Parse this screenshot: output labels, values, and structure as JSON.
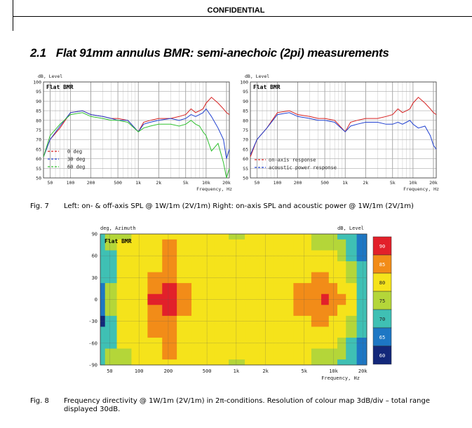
{
  "header": {
    "confidential": "CONFIDENTIAL"
  },
  "section": {
    "number": "2.1",
    "title": "Flat 91mm annulus BMR: semi-anechoic (2pi) measurements"
  },
  "fig7": {
    "label": "Fig. 7",
    "caption": "Left: on- & off-axis SPL @ 1W/1m (2V/1m) Right: on-axis SPL and acoustic power @ 1W/1m (2V/1m)"
  },
  "fig8": {
    "label": "Fig. 8",
    "caption": "Frequency directivity @ 1W/1m (2V/1m) in 2π-conditions. Resolution of colour map 3dB/div – total range displayed 30dB."
  },
  "chart_data": [
    {
      "type": "line",
      "panel_label": "Flat BMR",
      "ylabel": "dB, Level",
      "xlabel": "Frequency,  Hz",
      "xscale": "log",
      "xlim": [
        40,
        22000
      ],
      "ylim": [
        50,
        100
      ],
      "grid": true,
      "legend_position": "bottom-left",
      "x_ticks": [
        "50",
        "100",
        "200",
        "500",
        "1k",
        "2k",
        "5k",
        "10k",
        "20k"
      ],
      "y_ticks": [
        "50",
        "55",
        "60",
        "65",
        "70",
        "75",
        "80",
        "85",
        "90",
        "95",
        "100"
      ],
      "x": [
        40,
        50,
        70,
        100,
        150,
        200,
        300,
        400,
        500,
        700,
        1000,
        1200,
        1500,
        2000,
        3000,
        4000,
        5000,
        6000,
        7000,
        8000,
        9000,
        10000,
        12000,
        15000,
        18000,
        20000,
        22000
      ],
      "series": [
        {
          "name": "0 deg",
          "color": "#d62020",
          "values": [
            61,
            70,
            76,
            84,
            85,
            83,
            82,
            81,
            81,
            80,
            74,
            79,
            80,
            81,
            81,
            82,
            83,
            86,
            84,
            85,
            86,
            89,
            92,
            89,
            86,
            84,
            83
          ]
        },
        {
          "name": "30 deg",
          "color": "#2040d0",
          "values": [
            61,
            70,
            77,
            84,
            85,
            83,
            82,
            81,
            80,
            80,
            74,
            78,
            79,
            80,
            81,
            80,
            81,
            83,
            82,
            83,
            84,
            86,
            82,
            76,
            70,
            60,
            65
          ]
        },
        {
          "name": "60 deg",
          "color": "#30c030",
          "values": [
            61,
            72,
            78,
            83,
            84,
            82,
            81,
            80,
            80,
            79,
            74,
            76,
            77,
            78,
            78,
            77,
            78,
            80,
            78,
            77,
            74,
            72,
            64,
            68,
            58,
            50,
            55
          ]
        }
      ]
    },
    {
      "type": "line",
      "panel_label": "Flat BMR",
      "ylabel": "dB, Level",
      "xlabel": "Frequency,  Hz",
      "xscale": "log",
      "xlim": [
        40,
        22000
      ],
      "ylim": [
        50,
        100
      ],
      "grid": true,
      "legend_position": "bottom-left",
      "x_ticks": [
        "50",
        "100",
        "200",
        "500",
        "1k",
        "2k",
        "5k",
        "10k",
        "20k"
      ],
      "y_ticks": [
        "50",
        "55",
        "60",
        "65",
        "70",
        "75",
        "80",
        "85",
        "90",
        "95",
        "100"
      ],
      "x": [
        40,
        50,
        70,
        100,
        150,
        200,
        300,
        400,
        500,
        700,
        1000,
        1200,
        1500,
        2000,
        3000,
        4000,
        5000,
        6000,
        7000,
        8000,
        9000,
        10000,
        12000,
        15000,
        18000,
        20000,
        22000
      ],
      "series": [
        {
          "name": "on-axis response",
          "color": "#d62020",
          "values": [
            61,
            70,
            76,
            84,
            85,
            83,
            82,
            81,
            81,
            80,
            74,
            79,
            80,
            81,
            81,
            82,
            83,
            86,
            84,
            85,
            86,
            89,
            92,
            89,
            86,
            84,
            83
          ]
        },
        {
          "name": "acoustic power response",
          "color": "#2040d0",
          "values": [
            62,
            70,
            76,
            83,
            84,
            82,
            81,
            80,
            80,
            79,
            74,
            77,
            78,
            79,
            79,
            78,
            78,
            79,
            78,
            79,
            80,
            78,
            76,
            77,
            72,
            67,
            65
          ]
        }
      ]
    },
    {
      "type": "heatmap",
      "panel_label": "Flat BMR",
      "ylabel": "deg, Azimuth",
      "colorbar_label": "dB, Level",
      "xlabel": "Frequency,  Hz",
      "xscale": "log",
      "xlim": [
        40,
        22000
      ],
      "ylim": [
        -90,
        90
      ],
      "x_ticks": [
        "50",
        "100",
        "200",
        "500",
        "1k",
        "2k",
        "5k",
        "10k",
        "20k"
      ],
      "y_ticks": [
        "90",
        "60",
        "30",
        "0",
        "-30",
        "-60",
        "-90"
      ],
      "colorbar_ticks": [
        "90",
        "85",
        "80",
        "75",
        "70",
        "65",
        "60"
      ],
      "colorbar_colors": [
        "#e2202a",
        "#f28c18",
        "#f5e31b",
        "#b4d639",
        "#3fc0b4",
        "#1d77c4",
        "#13287a"
      ],
      "frequencies": [
        40,
        50,
        70,
        100,
        150,
        200,
        300,
        400,
        500,
        700,
        1000,
        1500,
        2000,
        3000,
        5000,
        7000,
        8000,
        10000,
        12000,
        15000,
        20000
      ],
      "angles": [
        90,
        75,
        60,
        45,
        30,
        15,
        0,
        -15,
        -30,
        -45,
        -60,
        -75,
        -90
      ],
      "levels": [
        [
          72,
          73,
          77,
          79,
          82,
          82,
          80,
          79,
          79,
          78,
          77,
          78,
          79,
          79,
          78,
          76,
          75,
          73,
          71,
          68,
          65
        ],
        [
          72,
          73,
          78,
          80,
          82,
          83,
          81,
          80,
          80,
          79,
          78,
          79,
          80,
          79,
          79,
          77,
          76,
          75,
          73,
          70,
          66
        ],
        [
          71,
          72,
          79,
          81,
          82,
          84,
          81,
          80,
          80,
          80,
          79,
          80,
          80,
          80,
          80,
          79,
          79,
          78,
          76,
          72,
          67
        ],
        [
          70,
          71,
          79,
          81,
          82,
          85,
          82,
          81,
          80,
          80,
          79,
          80,
          80,
          80,
          81,
          81,
          81,
          80,
          78,
          74,
          68
        ],
        [
          68,
          72,
          79,
          81,
          84,
          87,
          82,
          81,
          80,
          80,
          79,
          80,
          80,
          81,
          82,
          83,
          83,
          82,
          80,
          76,
          70
        ],
        [
          66,
          73,
          80,
          82,
          87,
          89,
          83,
          82,
          80,
          80,
          79,
          80,
          81,
          81,
          83,
          85,
          86,
          85,
          82,
          78,
          71
        ],
        [
          63,
          74,
          80,
          82,
          88,
          89,
          83,
          82,
          81,
          80,
          79,
          80,
          81,
          82,
          84,
          86,
          88,
          87,
          84,
          79,
          71
        ],
        [
          65,
          73,
          80,
          82,
          87,
          89,
          83,
          82,
          80,
          80,
          79,
          80,
          81,
          81,
          83,
          85,
          86,
          85,
          82,
          78,
          71
        ],
        [
          60,
          72,
          79,
          81,
          85,
          87,
          82,
          81,
          80,
          80,
          79,
          80,
          80,
          81,
          82,
          83,
          83,
          82,
          80,
          76,
          70
        ],
        [
          68,
          71,
          79,
          81,
          83,
          86,
          82,
          81,
          80,
          80,
          79,
          80,
          80,
          80,
          81,
          81,
          81,
          80,
          78,
          74,
          68
        ],
        [
          70,
          72,
          78,
          80,
          82,
          85,
          81,
          80,
          80,
          80,
          79,
          80,
          80,
          80,
          80,
          79,
          79,
          78,
          76,
          72,
          67
        ],
        [
          71,
          73,
          77,
          79,
          82,
          83,
          81,
          80,
          80,
          79,
          78,
          79,
          80,
          79,
          79,
          77,
          76,
          75,
          73,
          70,
          66
        ],
        [
          72,
          73,
          77,
          79,
          82,
          82,
          80,
          79,
          79,
          78,
          77,
          78,
          79,
          79,
          78,
          76,
          75,
          73,
          71,
          68,
          65
        ]
      ]
    }
  ]
}
